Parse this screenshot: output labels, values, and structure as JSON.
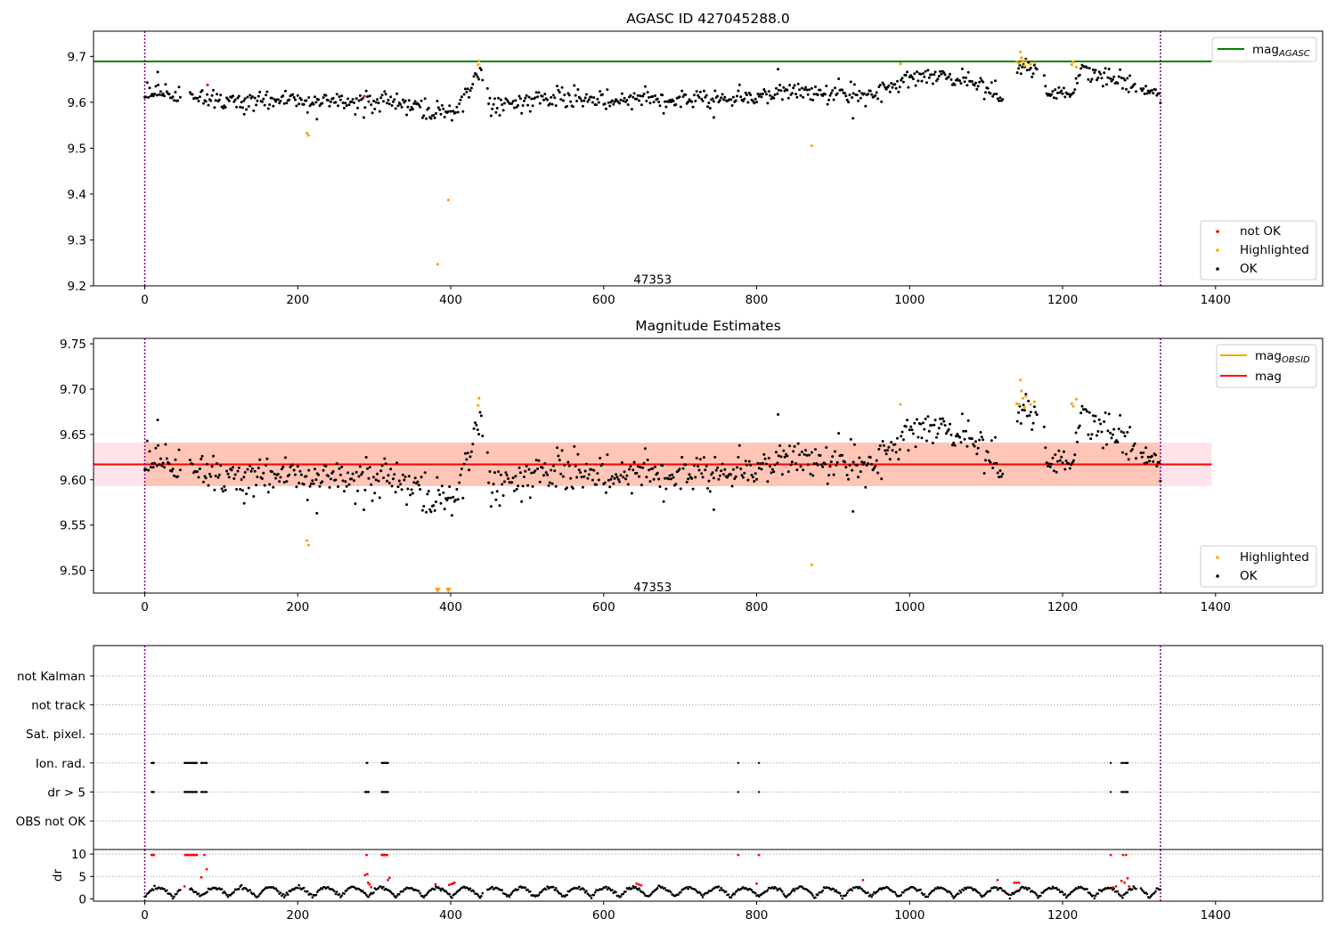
{
  "colors": {
    "ok": "#000000",
    "not_ok": "#ff0000",
    "highlighted": "#ffa500",
    "mag_agasc": "#008000",
    "mag": "#ff0000",
    "mag_obsid": "#ffa500",
    "obs_boundary": "#800080",
    "band_mag": "#ffc0cb",
    "band_obsid": "#ffa07a",
    "flag_grid": "#b0b0b0"
  },
  "chart_data": [
    {
      "type": "scatter",
      "title": "AGASC ID 427045288.0",
      "xlim": [
        -67,
        1540
      ],
      "ylim": [
        9.2,
        9.755
      ],
      "xticks": [
        0,
        200,
        400,
        600,
        800,
        1000,
        1200,
        1400
      ],
      "yticks": [
        9.2,
        9.3,
        9.4,
        9.5,
        9.6,
        9.7
      ],
      "ytick_labels": [
        "9.2",
        "9.3",
        "9.4",
        "9.5",
        "9.6",
        "9.7"
      ],
      "hlines": [
        {
          "name": "mag_AGASC",
          "y": 9.689,
          "xmax": 1395,
          "color": "#008000"
        }
      ],
      "vlines": [
        0,
        1328
      ],
      "annotation": {
        "text": "47353",
        "x": 664,
        "y": 9.215
      },
      "legend_top": {
        "position": "top-right",
        "entries": [
          {
            "label": "mag",
            "subscript": "AGASC",
            "kind": "line",
            "color": "#008000"
          }
        ]
      },
      "legend_bottom": {
        "position": "bottom-right",
        "entries": [
          {
            "label": "not OK",
            "kind": "marker",
            "color": "#ff0000"
          },
          {
            "label": "Highlighted",
            "kind": "marker",
            "color": "#ffa500"
          },
          {
            "label": "OK",
            "kind": "marker",
            "color": "#000000"
          }
        ]
      },
      "series": [
        {
          "name": "not OK",
          "color": "#ff0000",
          "points": [
            [
              82,
              9.638
            ],
            [
              287,
              9.613
            ]
          ]
        },
        {
          "name": "Highlighted",
          "color": "#ffa500",
          "points": [
            [
              212,
              9.533
            ],
            [
              214,
              9.528
            ],
            [
              383,
              9.247
            ],
            [
              397,
              9.387
            ],
            [
              436,
              9.682
            ],
            [
              437,
              9.69
            ],
            [
              872,
              9.505
            ],
            [
              988,
              9.684
            ],
            [
              1140,
              9.688
            ],
            [
              1143,
              9.685
            ],
            [
              1145,
              9.71
            ],
            [
              1146,
              9.697
            ],
            [
              1148,
              9.69
            ],
            [
              1150,
              9.68
            ],
            [
              1152,
              9.691
            ],
            [
              1158,
              9.683
            ],
            [
              1163,
              9.686
            ],
            [
              1212,
              9.682
            ],
            [
              1214,
              9.688
            ],
            [
              1218,
              9.677
            ]
          ]
        }
      ],
      "ok_series": {
        "name": "OK",
        "color": "#000000",
        "x_start": 0,
        "x_end": 1328,
        "step": 1.6,
        "gaps": [
          [
            48,
            58
          ],
          [
            442,
            448
          ],
          [
            1122,
            1140
          ],
          [
            1167,
            1176
          ],
          [
            1296,
            1302
          ]
        ],
        "noise": 0.011,
        "trend": [
          [
            0,
            9.618
          ],
          [
            150,
            9.601
          ],
          [
            300,
            9.6
          ],
          [
            350,
            9.595
          ],
          [
            380,
            9.573
          ],
          [
            410,
            9.588
          ],
          [
            420,
            9.625
          ],
          [
            440,
            9.66
          ],
          [
            452,
            9.59
          ],
          [
            500,
            9.606
          ],
          [
            700,
            9.608
          ],
          [
            800,
            9.612
          ],
          [
            840,
            9.625
          ],
          [
            960,
            9.615
          ],
          [
            980,
            9.64
          ],
          [
            1030,
            9.66
          ],
          [
            1080,
            9.648
          ],
          [
            1110,
            9.625
          ],
          [
            1122,
            9.6
          ],
          [
            1140,
            9.682
          ],
          [
            1165,
            9.67
          ],
          [
            1180,
            9.625
          ],
          [
            1215,
            9.625
          ],
          [
            1222,
            9.665
          ],
          [
            1290,
            9.642
          ],
          [
            1300,
            9.618
          ],
          [
            1328,
            9.62
          ]
        ],
        "extra_points": [
          [
            17,
            9.666
          ],
          [
            130,
            9.574
          ],
          [
            225,
            9.563
          ],
          [
            744,
            9.567
          ],
          [
            828,
            9.672
          ],
          [
            926,
            9.565
          ]
        ]
      }
    },
    {
      "type": "scatter",
      "title": "Magnitude Estimates",
      "xlim": [
        -67,
        1540
      ],
      "ylim": [
        9.475,
        9.756
      ],
      "xticks": [
        0,
        200,
        400,
        600,
        800,
        1000,
        1200,
        1400
      ],
      "yticks": [
        9.5,
        9.55,
        9.6,
        9.65,
        9.7,
        9.75
      ],
      "ytick_labels": [
        "9.50",
        "9.55",
        "9.60",
        "9.65",
        "9.70",
        "9.75"
      ],
      "hlines": [
        {
          "name": "mag",
          "y": 9.617,
          "xmax": 1395,
          "color": "#ff0000"
        }
      ],
      "bands": [
        {
          "name": "mag",
          "y0": 9.593,
          "y1": 9.641,
          "xmax": 1395,
          "color": "#ffc0cb",
          "opacity": 0.45
        },
        {
          "name": "mag_OBSID",
          "y0": 9.593,
          "y1": 9.641,
          "xmax": 1328,
          "color": "#ffa07a",
          "opacity": 0.45
        }
      ],
      "vlines": [
        0,
        1328
      ],
      "annotation": {
        "text": "47353",
        "x": 664,
        "y": 9.482
      },
      "legend_top": {
        "position": "top-right",
        "entries": [
          {
            "label": "mag",
            "subscript": "OBSID",
            "kind": "line",
            "color": "#ffa500"
          },
          {
            "label": "mag",
            "kind": "line",
            "color": "#ff0000"
          }
        ]
      },
      "legend_bottom": {
        "position": "bottom-right",
        "entries": [
          {
            "label": "Highlighted",
            "kind": "marker",
            "color": "#ffa500"
          },
          {
            "label": "OK",
            "kind": "marker",
            "color": "#000000"
          }
        ]
      },
      "series": [
        {
          "name": "Highlighted",
          "color": "#ffa500",
          "points": [
            [
              212,
              9.533
            ],
            [
              214,
              9.528
            ],
            [
              436,
              9.682
            ],
            [
              437,
              9.69
            ],
            [
              872,
              9.506
            ],
            [
              988,
              9.683
            ],
            [
              1140,
              9.684
            ],
            [
              1143,
              9.683
            ],
            [
              1145,
              9.71
            ],
            [
              1146,
              9.698
            ],
            [
              1148,
              9.69
            ],
            [
              1150,
              9.68
            ],
            [
              1152,
              9.692
            ],
            [
              1158,
              9.683
            ],
            [
              1163,
              9.686
            ],
            [
              1212,
              9.684
            ],
            [
              1214,
              9.681
            ],
            [
              1218,
              9.689
            ]
          ]
        },
        {
          "name": "Highlighted below range",
          "color": "#ffa500",
          "marker": "triangle-down",
          "points": [
            [
              383,
              9.478
            ],
            [
              397,
              9.478
            ]
          ]
        }
      ],
      "ok_series": {
        "name": "OK",
        "color": "#000000",
        "x_start": 0,
        "x_end": 1328,
        "step": 1.6,
        "gaps": [
          [
            48,
            58
          ],
          [
            442,
            448
          ],
          [
            1122,
            1140
          ],
          [
            1167,
            1176
          ],
          [
            1296,
            1302
          ]
        ],
        "noise": 0.011,
        "trend": [
          [
            0,
            9.618
          ],
          [
            150,
            9.601
          ],
          [
            300,
            9.6
          ],
          [
            350,
            9.595
          ],
          [
            380,
            9.573
          ],
          [
            410,
            9.588
          ],
          [
            420,
            9.625
          ],
          [
            440,
            9.66
          ],
          [
            452,
            9.59
          ],
          [
            500,
            9.606
          ],
          [
            700,
            9.608
          ],
          [
            800,
            9.612
          ],
          [
            840,
            9.625
          ],
          [
            960,
            9.615
          ],
          [
            980,
            9.64
          ],
          [
            1030,
            9.66
          ],
          [
            1080,
            9.648
          ],
          [
            1110,
            9.625
          ],
          [
            1122,
            9.6
          ],
          [
            1140,
            9.682
          ],
          [
            1165,
            9.67
          ],
          [
            1180,
            9.625
          ],
          [
            1215,
            9.625
          ],
          [
            1222,
            9.665
          ],
          [
            1290,
            9.642
          ],
          [
            1300,
            9.618
          ],
          [
            1328,
            9.62
          ]
        ],
        "extra_points": [
          [
            17,
            9.666
          ],
          [
            130,
            9.574
          ],
          [
            225,
            9.563
          ],
          [
            744,
            9.567
          ],
          [
            828,
            9.672
          ],
          [
            926,
            9.565
          ]
        ]
      }
    },
    {
      "type": "scatter",
      "title": "",
      "xlim": [
        -67,
        1540
      ],
      "xticks": [
        0,
        200,
        400,
        600,
        800,
        1000,
        1200,
        1400
      ],
      "vlines": [
        0,
        1328
      ],
      "flags": {
        "rows": [
          "not Kalman",
          "not track",
          "Sat. pixel.",
          "Ion. rad.",
          "dr > 5",
          "OBS not OK"
        ],
        "points": {
          "Ion. rad.": [
            9,
            10,
            11,
            12,
            52,
            53,
            54,
            55,
            56,
            57,
            58,
            59,
            60,
            61,
            62,
            63,
            64,
            65,
            66,
            67,
            68,
            74,
            75,
            76,
            78,
            80,
            81,
            290,
            291,
            310,
            311,
            312,
            313,
            314,
            315,
            316,
            317,
            318,
            776,
            803,
            1263,
            1277,
            1279,
            1281,
            1283,
            1284,
            1285
          ],
          "dr > 5": [
            9,
            10,
            11,
            12,
            52,
            53,
            54,
            55,
            56,
            57,
            58,
            59,
            60,
            61,
            62,
            63,
            64,
            65,
            66,
            67,
            68,
            74,
            75,
            76,
            78,
            80,
            81,
            288,
            289,
            290,
            291,
            292,
            293,
            310,
            311,
            312,
            313,
            314,
            315,
            316,
            317,
            318,
            776,
            803,
            1263,
            1277,
            1279,
            1281,
            1283,
            1284,
            1285
          ]
        }
      }
    },
    {
      "type": "scatter",
      "title": "",
      "ylabel": "dr",
      "xlim": [
        -67,
        1540
      ],
      "ylim": [
        -0.5,
        11
      ],
      "xticks": [
        0,
        200,
        400,
        600,
        800,
        1000,
        1200,
        1400
      ],
      "yticks": [
        0,
        5,
        10
      ],
      "ytick_labels": [
        "0",
        "5",
        "10"
      ],
      "vlines": [
        0,
        1328
      ],
      "series": [
        {
          "name": "not OK",
          "color": "#ff0000",
          "points": [
            [
              9,
              9.8
            ],
            [
              10,
              9.8
            ],
            [
              11,
              9.8
            ],
            [
              12,
              9.8
            ],
            [
              52,
              2.8
            ],
            [
              53,
              9.8
            ],
            [
              55,
              9.8
            ],
            [
              57,
              9.8
            ],
            [
              59,
              9.8
            ],
            [
              61,
              9.8
            ],
            [
              63,
              9.8
            ],
            [
              65,
              9.8
            ],
            [
              67,
              9.8
            ],
            [
              68,
              9.8
            ],
            [
              74,
              4.8
            ],
            [
              78,
              9.8
            ],
            [
              81,
              6.6
            ],
            [
              288,
              5.3
            ],
            [
              290,
              9.8
            ],
            [
              291,
              5.5
            ],
            [
              292,
              3.6
            ],
            [
              294,
              3.2
            ],
            [
              296,
              2.6
            ],
            [
              310,
              9.8
            ],
            [
              311,
              9.8
            ],
            [
              312,
              9.8
            ],
            [
              313,
              9.8
            ],
            [
              314,
              9.8
            ],
            [
              315,
              9.8
            ],
            [
              317,
              9.8
            ],
            [
              318,
              4.2
            ],
            [
              320,
              4.7
            ],
            [
              380,
              3.2
            ],
            [
              398,
              3.1
            ],
            [
              401,
              3.3
            ],
            [
              403,
              3.4
            ],
            [
              405,
              3.6
            ],
            [
              643,
              3.4
            ],
            [
              646,
              3.2
            ],
            [
              649,
              3.0
            ],
            [
              776,
              9.8
            ],
            [
              800,
              3.4
            ],
            [
              803,
              9.8
            ],
            [
              939,
              4.2
            ],
            [
              1115,
              4.2
            ],
            [
              1137,
              3.6
            ],
            [
              1140,
              3.6
            ],
            [
              1143,
              3.6
            ],
            [
              1263,
              9.8
            ],
            [
              1266,
              2.6
            ],
            [
              1270,
              2.8
            ],
            [
              1277,
              4.0
            ],
            [
              1279,
              9.8
            ],
            [
              1281,
              3.6
            ],
            [
              1283,
              9.8
            ],
            [
              1285,
              4.6
            ],
            [
              1287,
              2.8
            ]
          ]
        }
      ],
      "dr_ok": {
        "name": "OK",
        "color": "#000000",
        "x_start": 0,
        "x_end": 1328,
        "step": 1.6,
        "gaps": [
          [
            48,
            58
          ],
          [
            442,
            448
          ],
          [
            1296,
            1302
          ]
        ],
        "period": 36.5,
        "base": 0.4,
        "amp": 2.1
      }
    }
  ]
}
